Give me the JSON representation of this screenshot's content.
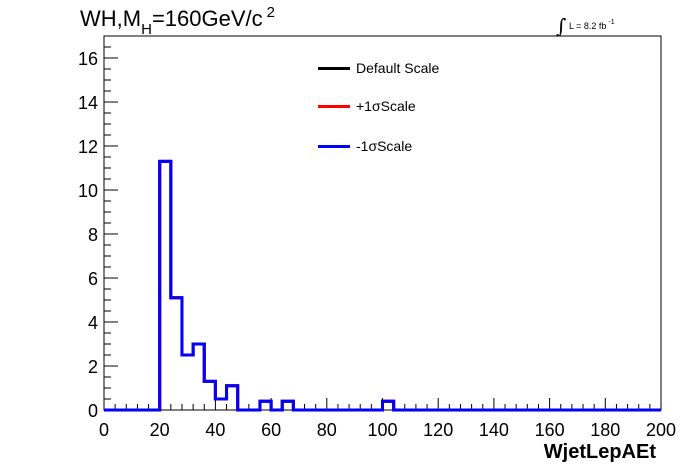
{
  "title": {
    "main": "WH,M",
    "sub": "H",
    "rest": "=160GeV/c",
    "sup": "2"
  },
  "lumi": {
    "integral": "∫",
    "text": "L = 8.2 fb",
    "sup": "-1"
  },
  "chart_data": {
    "type": "line",
    "xlabel": "WjetLepAEt",
    "xlim": [
      0,
      200
    ],
    "ylim": [
      0,
      17
    ],
    "xticks": [
      0,
      20,
      40,
      60,
      80,
      100,
      120,
      140,
      160,
      180,
      200
    ],
    "yticks": [
      0,
      2,
      4,
      6,
      8,
      10,
      12,
      14,
      16
    ],
    "bin_edges": [
      0,
      4,
      8,
      12,
      16,
      20,
      24,
      28,
      32,
      36,
      40,
      44,
      48,
      52,
      56,
      60,
      64,
      68,
      72,
      76,
      80,
      84,
      88,
      92,
      96,
      100,
      104,
      108,
      112,
      116,
      120,
      124,
      128,
      132,
      136,
      140,
      144,
      148,
      152,
      156,
      160,
      164,
      168,
      172,
      176,
      180,
      184,
      188,
      192,
      196,
      200
    ],
    "series": [
      {
        "name": "Default Scale",
        "color": "#000000",
        "values": [
          0,
          0,
          0,
          0,
          0,
          11.3,
          5.1,
          2.5,
          3.0,
          1.3,
          0.5,
          1.1,
          0,
          0,
          0.4,
          0,
          0.4,
          0,
          0,
          0,
          0,
          0,
          0,
          0,
          0,
          0.4,
          0,
          0,
          0,
          0,
          0,
          0,
          0,
          0,
          0,
          0,
          0,
          0,
          0,
          0,
          0,
          0,
          0,
          0,
          0,
          0,
          0,
          0,
          0,
          0
        ]
      },
      {
        "name": "+1σScale",
        "color": "#ff0000",
        "values": [
          0,
          0,
          0,
          0,
          0,
          11.3,
          5.1,
          2.5,
          3.0,
          1.3,
          0.5,
          1.1,
          0,
          0,
          0.4,
          0,
          0.4,
          0,
          0,
          0,
          0,
          0,
          0,
          0,
          0,
          0.4,
          0,
          0,
          0,
          0,
          0,
          0,
          0,
          0,
          0,
          0,
          0,
          0,
          0,
          0,
          0,
          0,
          0,
          0,
          0,
          0,
          0,
          0,
          0,
          0
        ]
      },
      {
        "name": "-1σScale",
        "color": "#0000ff",
        "values": [
          0,
          0,
          0,
          0,
          0,
          11.3,
          5.1,
          2.5,
          3.0,
          1.3,
          0.5,
          1.1,
          0,
          0,
          0.4,
          0,
          0.4,
          0,
          0,
          0,
          0,
          0,
          0,
          0,
          0,
          0.4,
          0,
          0,
          0,
          0,
          0,
          0,
          0,
          0,
          0,
          0,
          0,
          0,
          0,
          0,
          0,
          0,
          0,
          0,
          0,
          0,
          0,
          0,
          0,
          0
        ]
      }
    ],
    "legend": [
      "Default Scale",
      "+1σScale",
      "-1σScale"
    ],
    "legend_position": "top-center",
    "grid": false
  }
}
